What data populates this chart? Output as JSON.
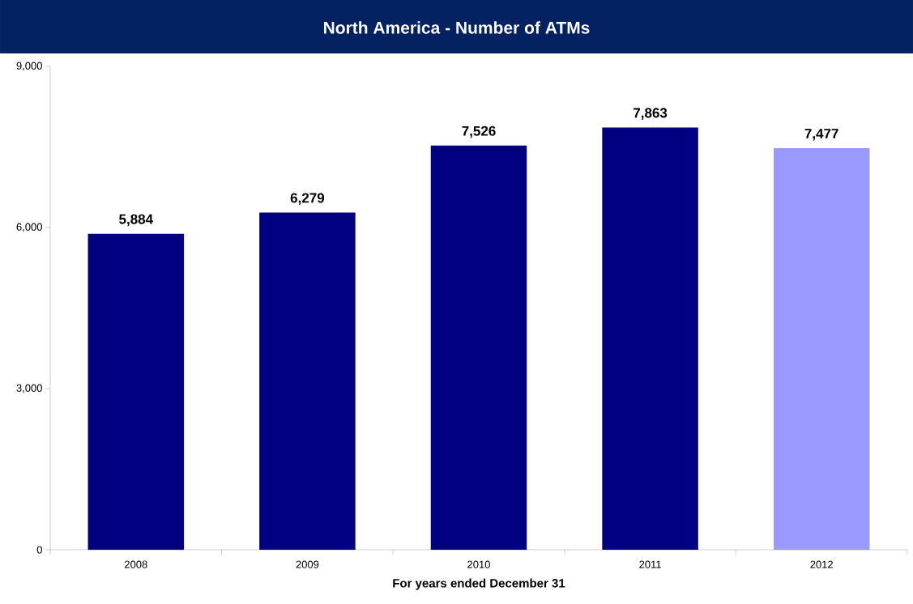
{
  "chart_data": {
    "type": "bar",
    "title": "North America - Number of ATMs",
    "xlabel": "For years ended December 31",
    "categories": [
      "2008",
      "2009",
      "2010",
      "2011",
      "2012"
    ],
    "values": [
      5884,
      6279,
      7526,
      7863,
      7477
    ],
    "value_labels": [
      "5,884",
      "6,279",
      "7,526",
      "7,863",
      "7,477"
    ],
    "colors": [
      "#000080",
      "#000080",
      "#000080",
      "#000080",
      "#9999ff"
    ],
    "ylim": [
      0,
      9000
    ],
    "yticks": [
      0,
      {
        "value": 3000,
        "label": "3,000"
      },
      {
        "value": 6000,
        "label": "6,000"
      },
      {
        "value": 9000,
        "label": "9,000"
      }
    ]
  }
}
